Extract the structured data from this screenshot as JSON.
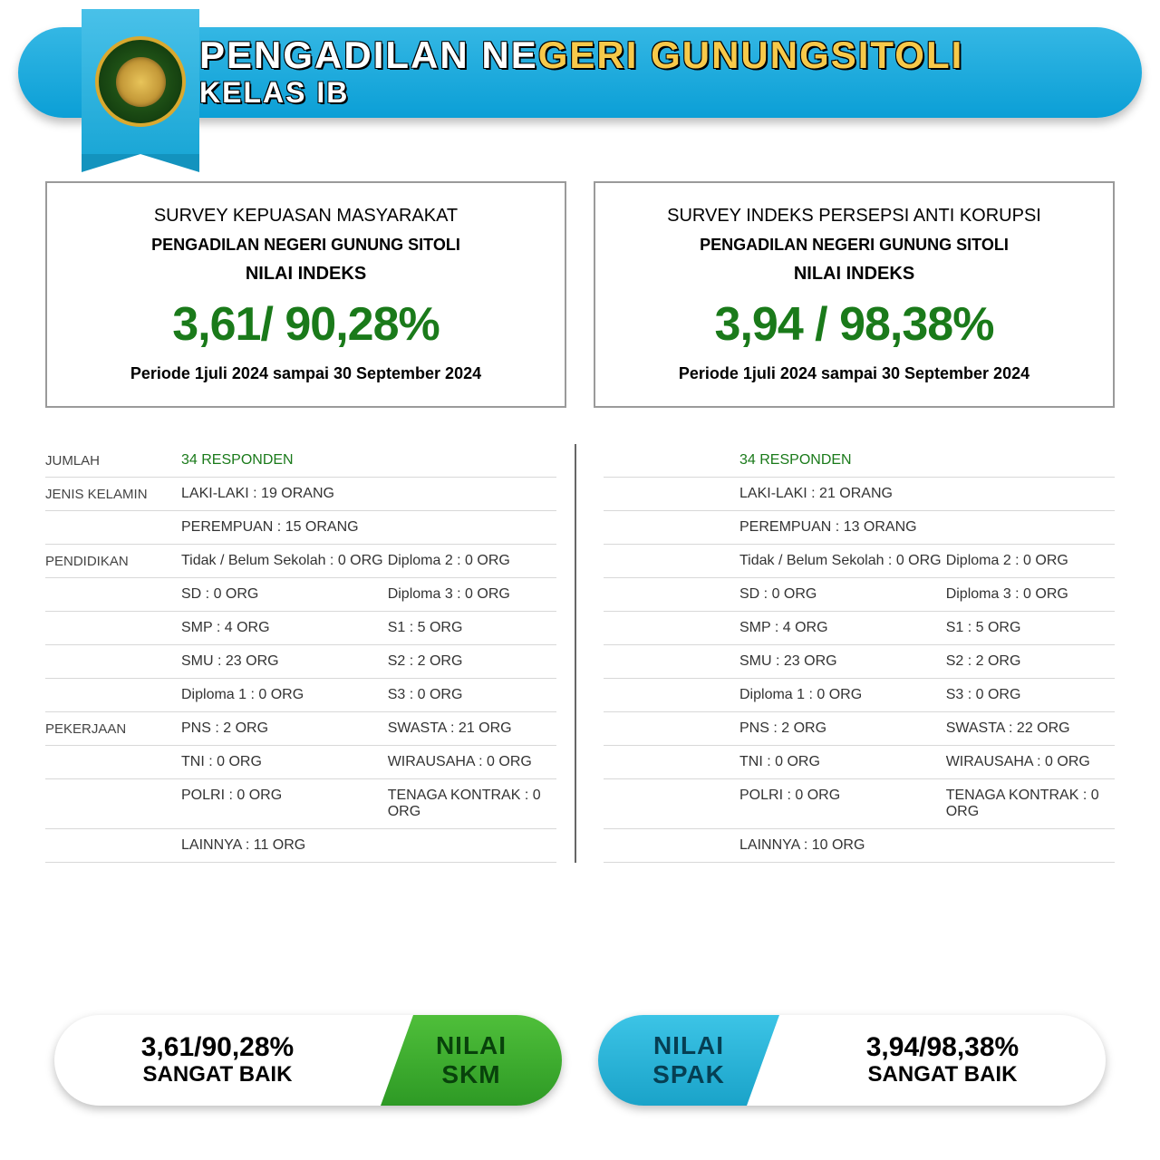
{
  "header": {
    "title_part1": "PENGADILAN ",
    "title_part2_white": "NE",
    "title_part2_gold": "GERI GUNUNGSITOLI",
    "subtitle": "KELAS IB"
  },
  "cards": {
    "left": {
      "line1": "SURVEY KEPUASAN MASYARAKAT",
      "line2": "PENGADILAN NEGERI GUNUNG SITOLI",
      "line3": "NILAI INDEKS",
      "score": "3,61/ 90,28%",
      "period": "Periode 1juli 2024 sampai 30 September 2024"
    },
    "right": {
      "line1": "SURVEY INDEKS PERSEPSI ANTI KORUPSI",
      "line2": "PENGADILAN NEGERI GUNUNG SITOLI",
      "line3": "NILAI INDEKS",
      "score": "3,94 / 98,38%",
      "period": "Periode 1juli 2024 sampai 30 September 2024"
    }
  },
  "labels": {
    "jumlah": "JUMLAH",
    "jenis_kelamin": "JENIS KELAMIN",
    "pendidikan": "PENDIDIKAN",
    "pekerjaan": "PEKERJAAN"
  },
  "left_col": {
    "responden": "34 RESPONDEN",
    "laki": "LAKI-LAKI : 19 ORANG",
    "perempuan": "PEREMPUAN : 15 ORANG",
    "pend": [
      [
        "Tidak / Belum Sekolah : 0 ORG",
        "Diploma 2 : 0 ORG"
      ],
      [
        "SD : 0 ORG",
        "Diploma 3 : 0 ORG"
      ],
      [
        "SMP : 4 ORG",
        "S1 : 5 ORG"
      ],
      [
        "SMU : 23 ORG",
        "S2 : 2 ORG"
      ],
      [
        "Diploma 1 : 0 ORG",
        "S3 : 0 ORG"
      ]
    ],
    "kerja": [
      [
        "PNS : 2 ORG",
        "SWASTA : 21 ORG"
      ],
      [
        "TNI : 0 ORG",
        "WIRAUSAHA : 0 ORG"
      ],
      [
        "POLRI : 0 ORG",
        "TENAGA KONTRAK : 0 ORG"
      ],
      [
        "LAINNYA : 11 ORG",
        ""
      ]
    ]
  },
  "right_col": {
    "responden": "34 RESPONDEN",
    "laki": "LAKI-LAKI : 21 ORANG",
    "perempuan": "PEREMPUAN : 13 ORANG",
    "pend": [
      [
        "Tidak / Belum Sekolah : 0 ORG",
        "Diploma 2 : 0 ORG"
      ],
      [
        "SD : 0 ORG",
        "Diploma 3 : 0 ORG"
      ],
      [
        "SMP : 4 ORG",
        "S1 : 5 ORG"
      ],
      [
        "SMU : 23 ORG",
        "S2 : 2 ORG"
      ],
      [
        "Diploma 1 : 0 ORG",
        "S3 : 0 ORG"
      ]
    ],
    "kerja": [
      [
        "PNS : 2 ORG",
        "SWASTA : 22 ORG"
      ],
      [
        "TNI : 0 ORG",
        "WIRAUSAHA : 0 ORG"
      ],
      [
        "POLRI : 0 ORG",
        "TENAGA KONTRAK : 0 ORG"
      ],
      [
        "LAINNYA : 10 ORG",
        ""
      ]
    ]
  },
  "badges": {
    "skm": {
      "score": "3,61/90,28%",
      "rating": "SANGAT BAIK",
      "tag1": "NILAI",
      "tag2": "SKM"
    },
    "spak": {
      "score": "3,94/98,38%",
      "rating": "SANGAT BAIK",
      "tag1": "NILAI",
      "tag2": "SPAK"
    }
  },
  "colors": {
    "banner_blue": "#1ba7d6",
    "score_green": "#1a7a1a",
    "skm_green": "#2e9a25",
    "spak_teal": "#1aa3c9",
    "card_border": "#9a9a9a"
  }
}
